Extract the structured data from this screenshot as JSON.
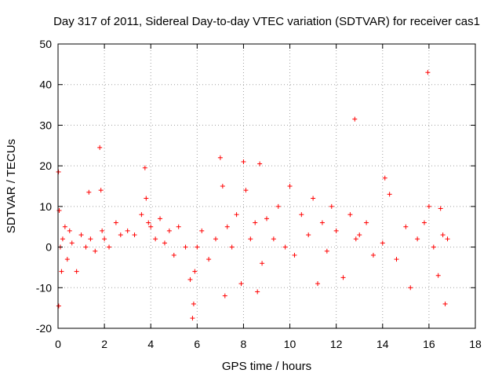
{
  "chart_data": {
    "type": "scatter",
    "title": "Day 317 of 2011, Sidereal Day-to-day VTEC variation (SDTVAR) for receiver cas1",
    "xlabel": "GPS time / hours",
    "ylabel": "SDTVAR / TECUs",
    "xlim": [
      0,
      18
    ],
    "ylim": [
      -20,
      50
    ],
    "xticks": [
      0,
      2,
      4,
      6,
      8,
      10,
      12,
      14,
      16,
      18
    ],
    "yticks": [
      -20,
      -10,
      0,
      10,
      20,
      30,
      40,
      50
    ],
    "grid": true,
    "marker": "+",
    "color": "#ff0000",
    "series": [
      {
        "name": "cas1",
        "x": [
          0.02,
          0.03,
          0.05,
          0.1,
          0.15,
          0.2,
          0.3,
          0.4,
          0.5,
          0.6,
          0.8,
          1.0,
          1.2,
          1.33,
          1.4,
          1.6,
          1.8,
          1.85,
          1.9,
          2.0,
          2.2,
          2.5,
          2.7,
          3.0,
          3.3,
          3.6,
          3.75,
          3.8,
          3.9,
          4.0,
          4.2,
          4.4,
          4.6,
          4.8,
          5.0,
          5.2,
          5.5,
          5.7,
          5.8,
          5.85,
          5.9,
          6.0,
          6.2,
          6.5,
          6.8,
          7.0,
          7.1,
          7.2,
          7.3,
          7.5,
          7.7,
          7.9,
          8.0,
          8.1,
          8.3,
          8.5,
          8.6,
          8.7,
          8.8,
          9.0,
          9.3,
          9.5,
          9.8,
          10.0,
          10.2,
          10.5,
          10.8,
          11.0,
          11.2,
          11.4,
          11.6,
          11.8,
          12.0,
          12.3,
          12.6,
          12.8,
          12.85,
          13.0,
          13.3,
          13.6,
          14.0,
          14.1,
          14.3,
          14.6,
          15.0,
          15.2,
          15.5,
          15.8,
          15.95,
          16.0,
          16.2,
          16.4,
          16.5,
          16.6,
          16.7,
          16.8
        ],
        "y": [
          18.5,
          -14.5,
          9,
          0,
          -6,
          2,
          5,
          -3,
          4,
          1,
          -6,
          3,
          0,
          13.5,
          2,
          -1,
          24.5,
          14,
          4,
          2,
          0,
          6,
          3,
          4,
          3,
          8,
          19.5,
          12,
          6,
          5,
          2,
          7,
          1,
          4,
          -2,
          5,
          0,
          -8,
          -17.5,
          -14,
          -6,
          0,
          4,
          -3,
          2,
          22,
          15,
          -12,
          5,
          0,
          8,
          -9,
          21,
          14,
          2,
          6,
          -11,
          20.5,
          -4,
          7,
          2,
          10,
          0,
          15,
          -2,
          8,
          3,
          12,
          -9,
          6,
          -1,
          10,
          4,
          -7.5,
          8,
          31.5,
          2,
          3,
          6,
          -2,
          1,
          17,
          13,
          -3,
          5,
          -10,
          2,
          6,
          43,
          10,
          0,
          -7,
          9.5,
          3,
          -14,
          2
        ]
      }
    ]
  }
}
